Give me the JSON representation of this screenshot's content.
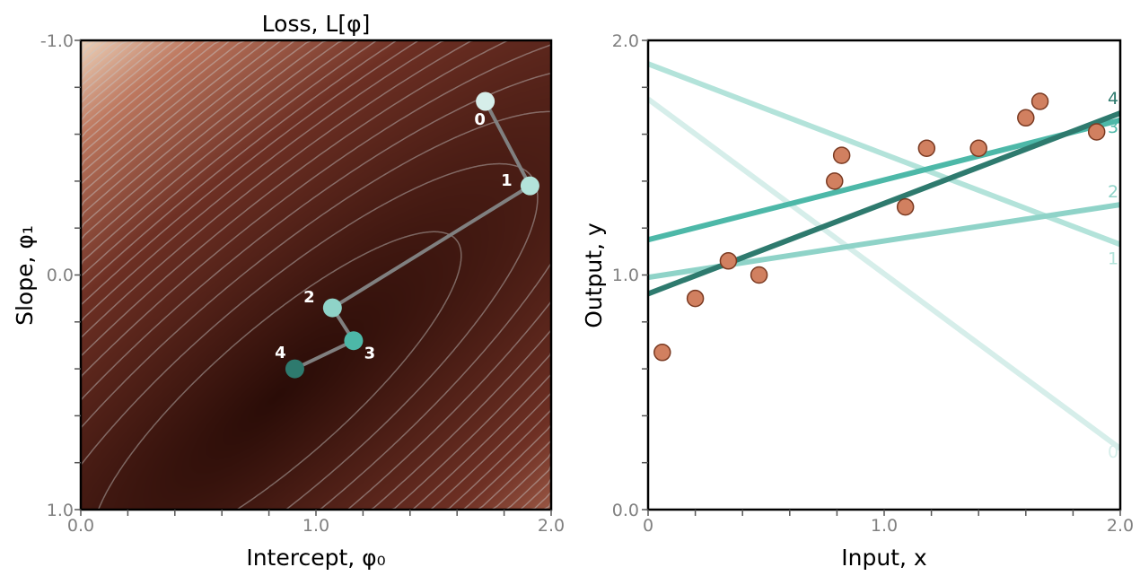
{
  "chart_data": [
    {
      "type": "heatmap",
      "title": "Loss, L[φ]",
      "xlabel": "Intercept, φ₀",
      "ylabel": "Slope, φ₁",
      "xlim": [
        0.0,
        2.0
      ],
      "ylim": [
        1.0,
        -1.0
      ],
      "x_tick_labels": [
        "0.0",
        "1.0",
        "2.0"
      ],
      "y_tick_labels": [
        "-1.0",
        "0.0",
        "1.0"
      ],
      "minor_tick_step": 0.2,
      "contours": true,
      "colors": {
        "low": "#2a0c07",
        "high": "#f2dcc4",
        "contour": "#c8c8c8",
        "path": "#808080"
      },
      "path": [
        {
          "label": "0",
          "phi0": 1.72,
          "phi1": -0.74,
          "color": "#d6eeea"
        },
        {
          "label": "1",
          "phi0": 1.91,
          "phi1": -0.38,
          "color": "#b3e3da"
        },
        {
          "label": "2",
          "phi0": 1.07,
          "phi1": 0.14,
          "color": "#8fd3c8"
        },
        {
          "label": "3",
          "phi0": 1.16,
          "phi1": 0.28,
          "color": "#4db8a8"
        },
        {
          "label": "4",
          "phi0": 0.91,
          "phi1": 0.4,
          "color": "#2e7a6e"
        }
      ]
    },
    {
      "type": "scatter",
      "xlabel": "Input, x",
      "ylabel": "Output, y",
      "xlim": [
        0.0,
        2.0
      ],
      "ylim": [
        0.0,
        2.0
      ],
      "x_tick_labels": [
        "0",
        "1.0",
        "2.0"
      ],
      "y_tick_labels": [
        "0.0",
        "1.0",
        "2.0"
      ],
      "minor_tick_step": 0.2,
      "points": {
        "x": [
          0.06,
          0.2,
          0.34,
          0.47,
          0.79,
          0.82,
          1.09,
          1.18,
          1.4,
          1.6,
          1.66,
          1.9
        ],
        "y": [
          0.67,
          0.9,
          1.06,
          1.0,
          1.4,
          1.51,
          1.29,
          1.54,
          1.54,
          1.67,
          1.74,
          1.61
        ],
        "color": "#d18060",
        "edge": "#7a3a22"
      },
      "lines": [
        {
          "label": "0",
          "intercept": 1.75,
          "slope": -0.745,
          "color": "#d6eeea"
        },
        {
          "label": "1",
          "intercept": 1.9,
          "slope": -0.385,
          "color": "#b3e3da"
        },
        {
          "label": "2",
          "intercept": 0.99,
          "slope": 0.155,
          "color": "#8fd3c8"
        },
        {
          "label": "3",
          "intercept": 1.15,
          "slope": 0.255,
          "color": "#4db8a8"
        },
        {
          "label": "4",
          "intercept": 0.92,
          "slope": 0.385,
          "color": "#2e7a6e"
        }
      ]
    }
  ]
}
